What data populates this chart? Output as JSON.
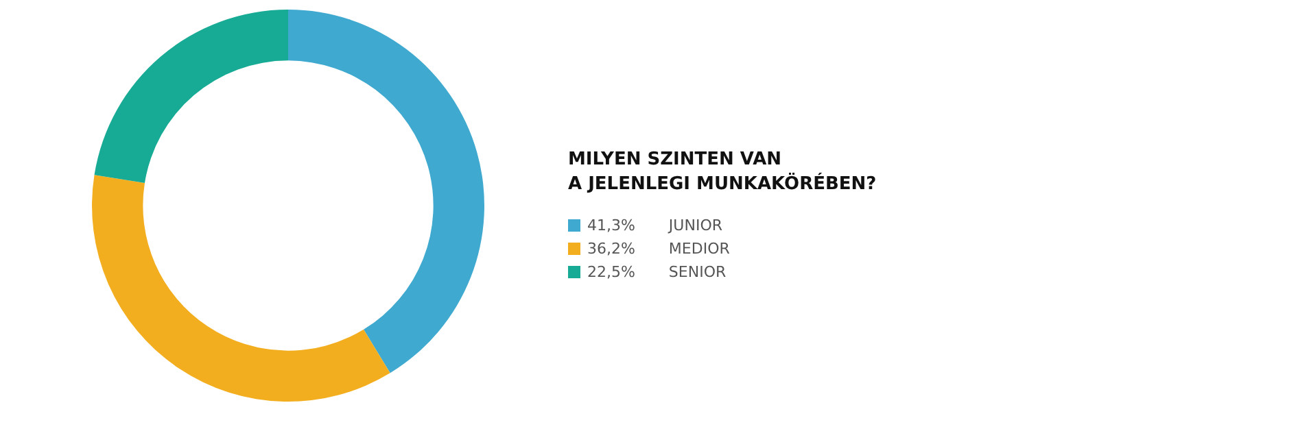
{
  "chart_data": {
    "type": "donut",
    "title": "MILYEN SZINTEN VAN\nA JELENLEGI MUNKAKÖRÉBEN?",
    "categories": [
      "JUNIOR",
      "MEDIOR",
      "SENIOR"
    ],
    "values": [
      41.3,
      36.2,
      22.5
    ],
    "value_labels": [
      "41,3%",
      "36,2%",
      "22,5%"
    ],
    "colors": [
      "#3fa9d0",
      "#f3ae1f",
      "#17ab96"
    ],
    "legend": "right"
  }
}
